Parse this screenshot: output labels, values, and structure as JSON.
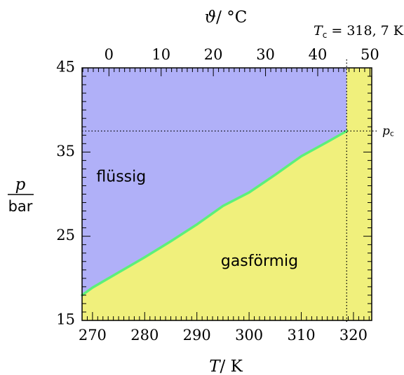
{
  "chart_data": {
    "type": "area",
    "title": "",
    "x_bottom": {
      "label_symbol": "T",
      "label_unit": "K",
      "range": [
        268,
        323.5
      ],
      "ticks": [
        270,
        280,
        290,
        300,
        310,
        320
      ],
      "tick_labels": [
        "270",
        "280",
        "290",
        "300",
        "310",
        "320"
      ]
    },
    "x_top": {
      "label_symbol": "ϑ",
      "label_unit": "°C",
      "ticks": [
        0,
        10,
        20,
        30,
        40,
        50
      ],
      "tick_labels": [
        "0",
        "10",
        "20",
        "30",
        "40",
        "50"
      ],
      "offset_K": 273.15
    },
    "y": {
      "label_num": "p",
      "label_den": "bar",
      "range": [
        15,
        45
      ],
      "ticks": [
        15,
        25,
        35,
        45
      ],
      "tick_labels": [
        "15",
        "25",
        "35",
        "45"
      ]
    },
    "critical_point": {
      "T_label_sub": "c",
      "T_label_value": "318, 7 K",
      "T": 318.7,
      "p_label_sub": "c",
      "p": 37.5
    },
    "boundary_curve": {
      "x": [
        268.0,
        270.0,
        275.0,
        280.0,
        285.0,
        290.0,
        295.0,
        300.0,
        305.0,
        310.0,
        315.0,
        318.7
      ],
      "y": [
        18.0,
        18.9,
        20.7,
        22.5,
        24.4,
        26.4,
        28.6,
        30.2,
        32.3,
        34.5,
        36.2,
        37.5
      ]
    },
    "regions": [
      {
        "name": "liquid",
        "label": "flüssig",
        "color": "#b0b0f8"
      },
      {
        "name": "gas",
        "label": "gasförmig",
        "color": "#f0f07c"
      }
    ],
    "curve_color": "#5cf07a"
  }
}
